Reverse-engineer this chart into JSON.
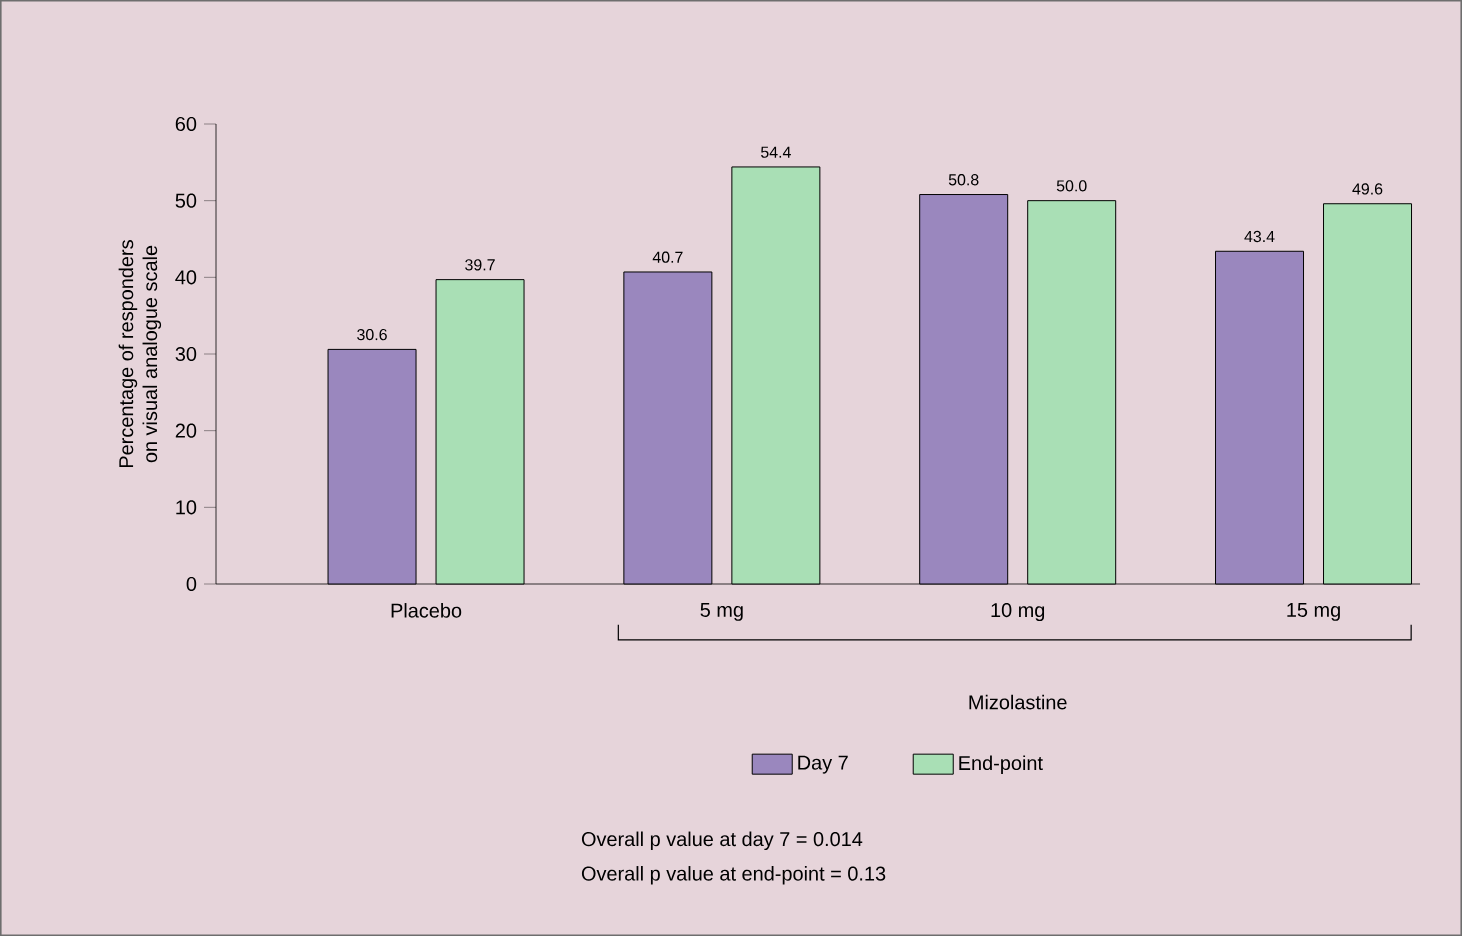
{
  "chart_data": {
    "type": "bar",
    "ylabel": "Percentage of responders\non visual analogue scale",
    "categories": [
      "Placebo",
      "5 mg",
      "10 mg",
      "15 mg"
    ],
    "series": [
      {
        "name": "Day 7",
        "color": "#9a87be",
        "values": [
          30.6,
          40.7,
          50.8,
          43.4
        ],
        "value_labels": [
          "30.6",
          "40.7",
          "50.8",
          "43.4"
        ]
      },
      {
        "name": "End-point",
        "color": "#a9dfb5",
        "values": [
          39.7,
          54.4,
          50.0,
          49.6
        ],
        "value_labels": [
          "39.7",
          "54.4",
          "50.0",
          "49.6"
        ]
      }
    ],
    "ylim": [
      0,
      60
    ],
    "yticks": [
      0,
      10,
      20,
      30,
      40,
      50,
      60
    ],
    "legend": "bottom",
    "annotations": [
      "Mizolastine",
      "Overall p value at day 7 = 0.014",
      "Overall p value at end-point = 0.13"
    ]
  }
}
